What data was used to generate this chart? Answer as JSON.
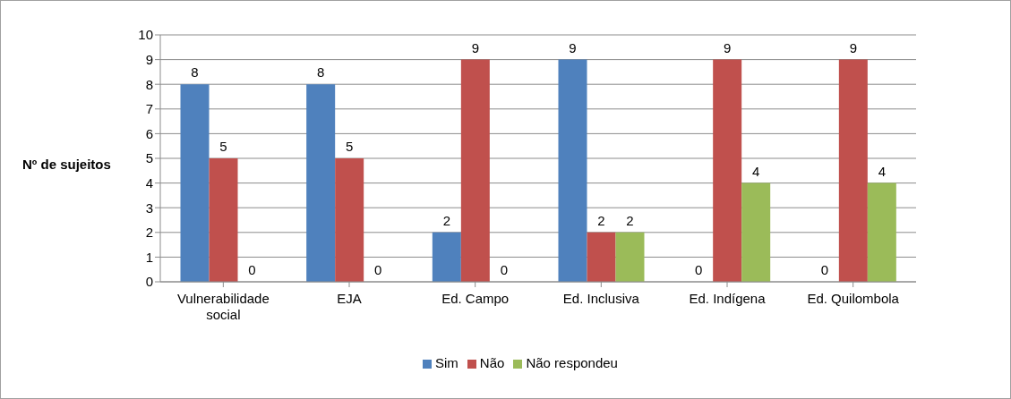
{
  "chart_data": {
    "type": "bar",
    "ylabel": "Nº de sujeitos",
    "categories": [
      "Vulnerabilidade social",
      "EJA",
      "Ed. Campo",
      "Ed. Inclusiva",
      "Ed. Indígena",
      "Ed. Quilombola"
    ],
    "series": [
      {
        "name": "Sim",
        "color": "#4f81bd",
        "values": [
          8,
          8,
          2,
          9,
          0,
          0
        ]
      },
      {
        "name": "Não",
        "color": "#c0504d",
        "values": [
          5,
          5,
          9,
          2,
          9,
          9
        ]
      },
      {
        "name": "Não respondeu",
        "color": "#9bbb59",
        "values": [
          0,
          0,
          0,
          2,
          4,
          4
        ]
      }
    ],
    "ylim": [
      0,
      10
    ],
    "yticks": [
      0,
      1,
      2,
      3,
      4,
      5,
      6,
      7,
      8,
      9,
      10
    ],
    "grid": "y",
    "legend": "bottom",
    "data_labels": true
  }
}
